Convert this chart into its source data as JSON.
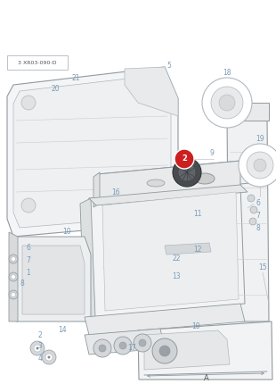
{
  "bg": "#ffffff",
  "lc": "#b0b8c0",
  "lc2": "#c8cfd5",
  "tc": "#7a9ab8",
  "dc": "#909aa0",
  "title": "3 XR03-090-D",
  "red": "#cc2020",
  "figw": 3.1,
  "figh": 4.3,
  "dpi": 100
}
